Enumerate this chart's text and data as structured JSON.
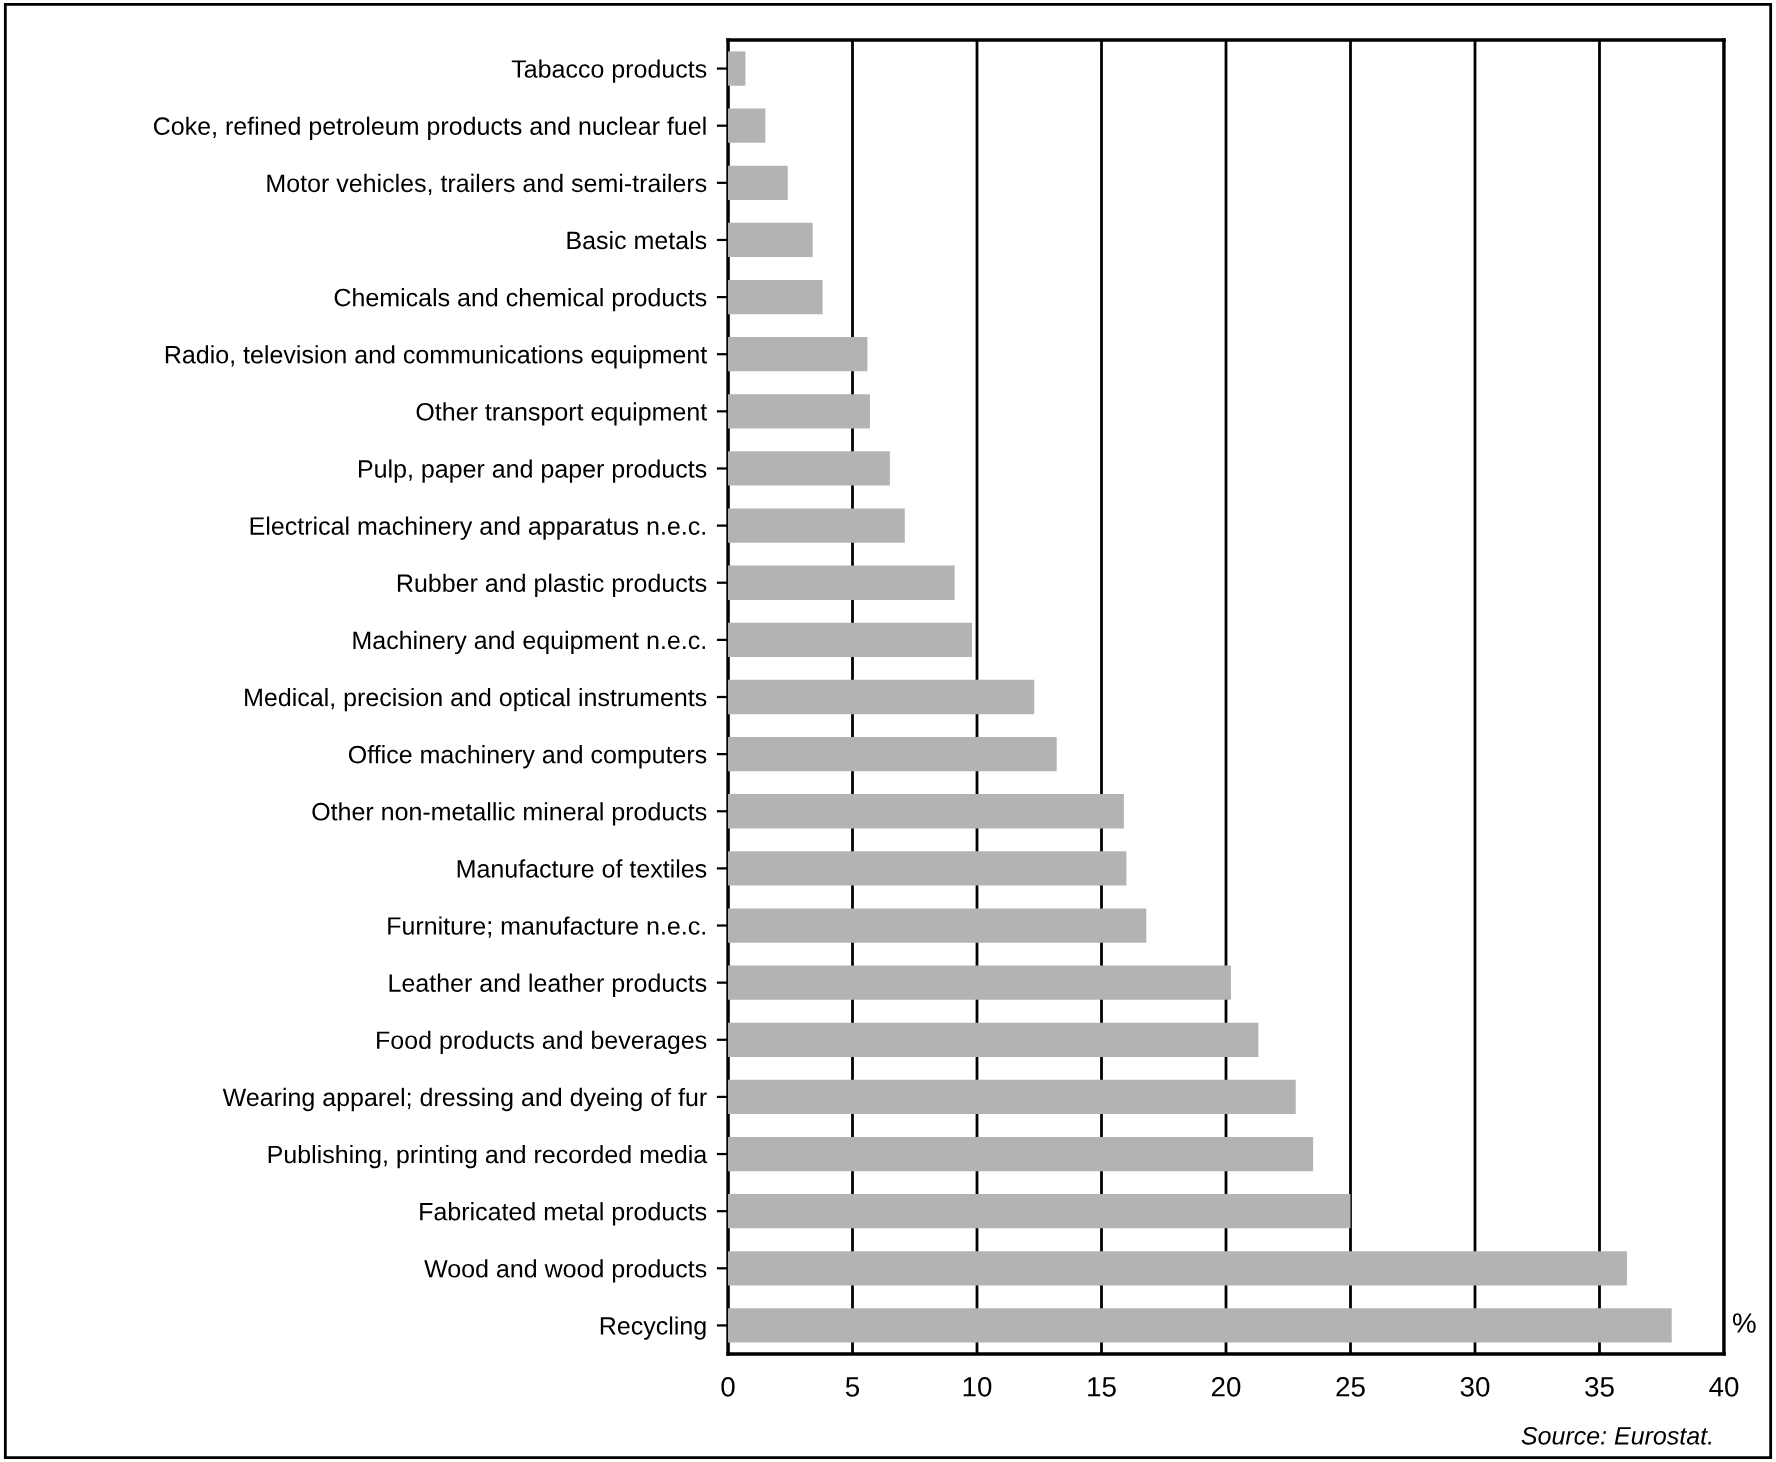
{
  "chart_data": {
    "type": "bar",
    "orientation": "horizontal",
    "categories": [
      "Tabacco products",
      "Coke, refined petroleum products and nuclear fuel",
      "Motor vehicles, trailers and semi-trailers",
      "Basic metals",
      "Chemicals and chemical products",
      "Radio, television and communications equipment",
      "Other transport equipment",
      "Pulp, paper and paper products",
      "Electrical machinery and apparatus n.e.c.",
      "Rubber and plastic products",
      "Machinery and equipment n.e.c.",
      "Medical, precision and optical instruments",
      "Office machinery and computers",
      "Other non-metallic mineral products",
      "Manufacture of textiles",
      "Furniture; manufacture n.e.c.",
      "Leather and leather products",
      "Food products and beverages",
      "Wearing apparel; dressing and dyeing of fur",
      "Publishing, printing and recorded media",
      "Fabricated metal products",
      "Wood and wood products",
      "Recycling"
    ],
    "values": [
      0.7,
      1.5,
      2.4,
      3.4,
      3.8,
      5.6,
      5.7,
      6.5,
      7.1,
      9.1,
      9.8,
      12.3,
      13.2,
      15.9,
      16.0,
      16.8,
      20.2,
      21.3,
      22.8,
      23.5,
      25.0,
      36.1,
      37.9
    ],
    "color": "#b3b3b3",
    "xlim": [
      0,
      40
    ],
    "xticks": [
      0,
      5,
      10,
      15,
      20,
      25,
      30,
      35,
      40
    ],
    "xlabel": "%",
    "grid": "x",
    "annotations": [
      "Source: Eurostat."
    ]
  }
}
